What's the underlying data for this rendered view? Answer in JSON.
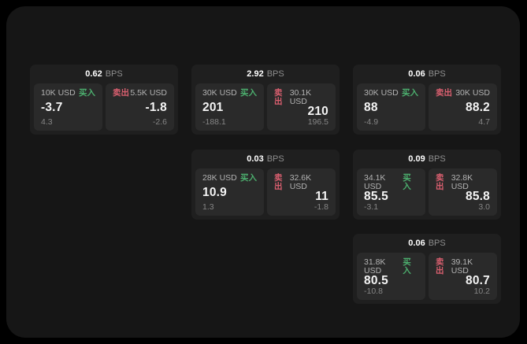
{
  "labels": {
    "buy": "买入",
    "sell": "卖出",
    "bps_unit": "BPS"
  },
  "colors": {
    "background": "#000000",
    "screen": "#161616",
    "card": "#1f1f1f",
    "tile": "#2a2a2a",
    "buy_accent": "#4caf6e",
    "sell_accent": "#d95f6f"
  },
  "cards": [
    {
      "bps": "0.62",
      "buy": {
        "amount": "10K USD",
        "value": "-3.7",
        "sub": "4.3"
      },
      "sell": {
        "amount": "5.5K USD",
        "value": "-1.8",
        "sub": "-2.6"
      }
    },
    {
      "bps": "2.92",
      "buy": {
        "amount": "30K USD",
        "value": "201",
        "sub": "-188.1"
      },
      "sell": {
        "amount": "30.1K USD",
        "value": "210",
        "sub": "196.5"
      }
    },
    {
      "bps": "0.06",
      "buy": {
        "amount": "30K USD",
        "value": "88",
        "sub": "-4.9"
      },
      "sell": {
        "amount": "30K USD",
        "value": "88.2",
        "sub": "4.7"
      }
    },
    {
      "bps": "0.03",
      "buy": {
        "amount": "28K USD",
        "value": "10.9",
        "sub": "1.3"
      },
      "sell": {
        "amount": "32.6K USD",
        "value": "11",
        "sub": "-1.8"
      }
    },
    {
      "bps": "0.09",
      "buy": {
        "amount": "34.1K USD",
        "value": "85.5",
        "sub": "-3.1"
      },
      "sell": {
        "amount": "32.8K USD",
        "value": "85.8",
        "sub": "3.0"
      }
    },
    {
      "bps": "0.06",
      "buy": {
        "amount": "31.8K USD",
        "value": "80.5",
        "sub": "-10.8"
      },
      "sell": {
        "amount": "39.1K USD",
        "value": "80.7",
        "sub": "10.2"
      }
    }
  ]
}
